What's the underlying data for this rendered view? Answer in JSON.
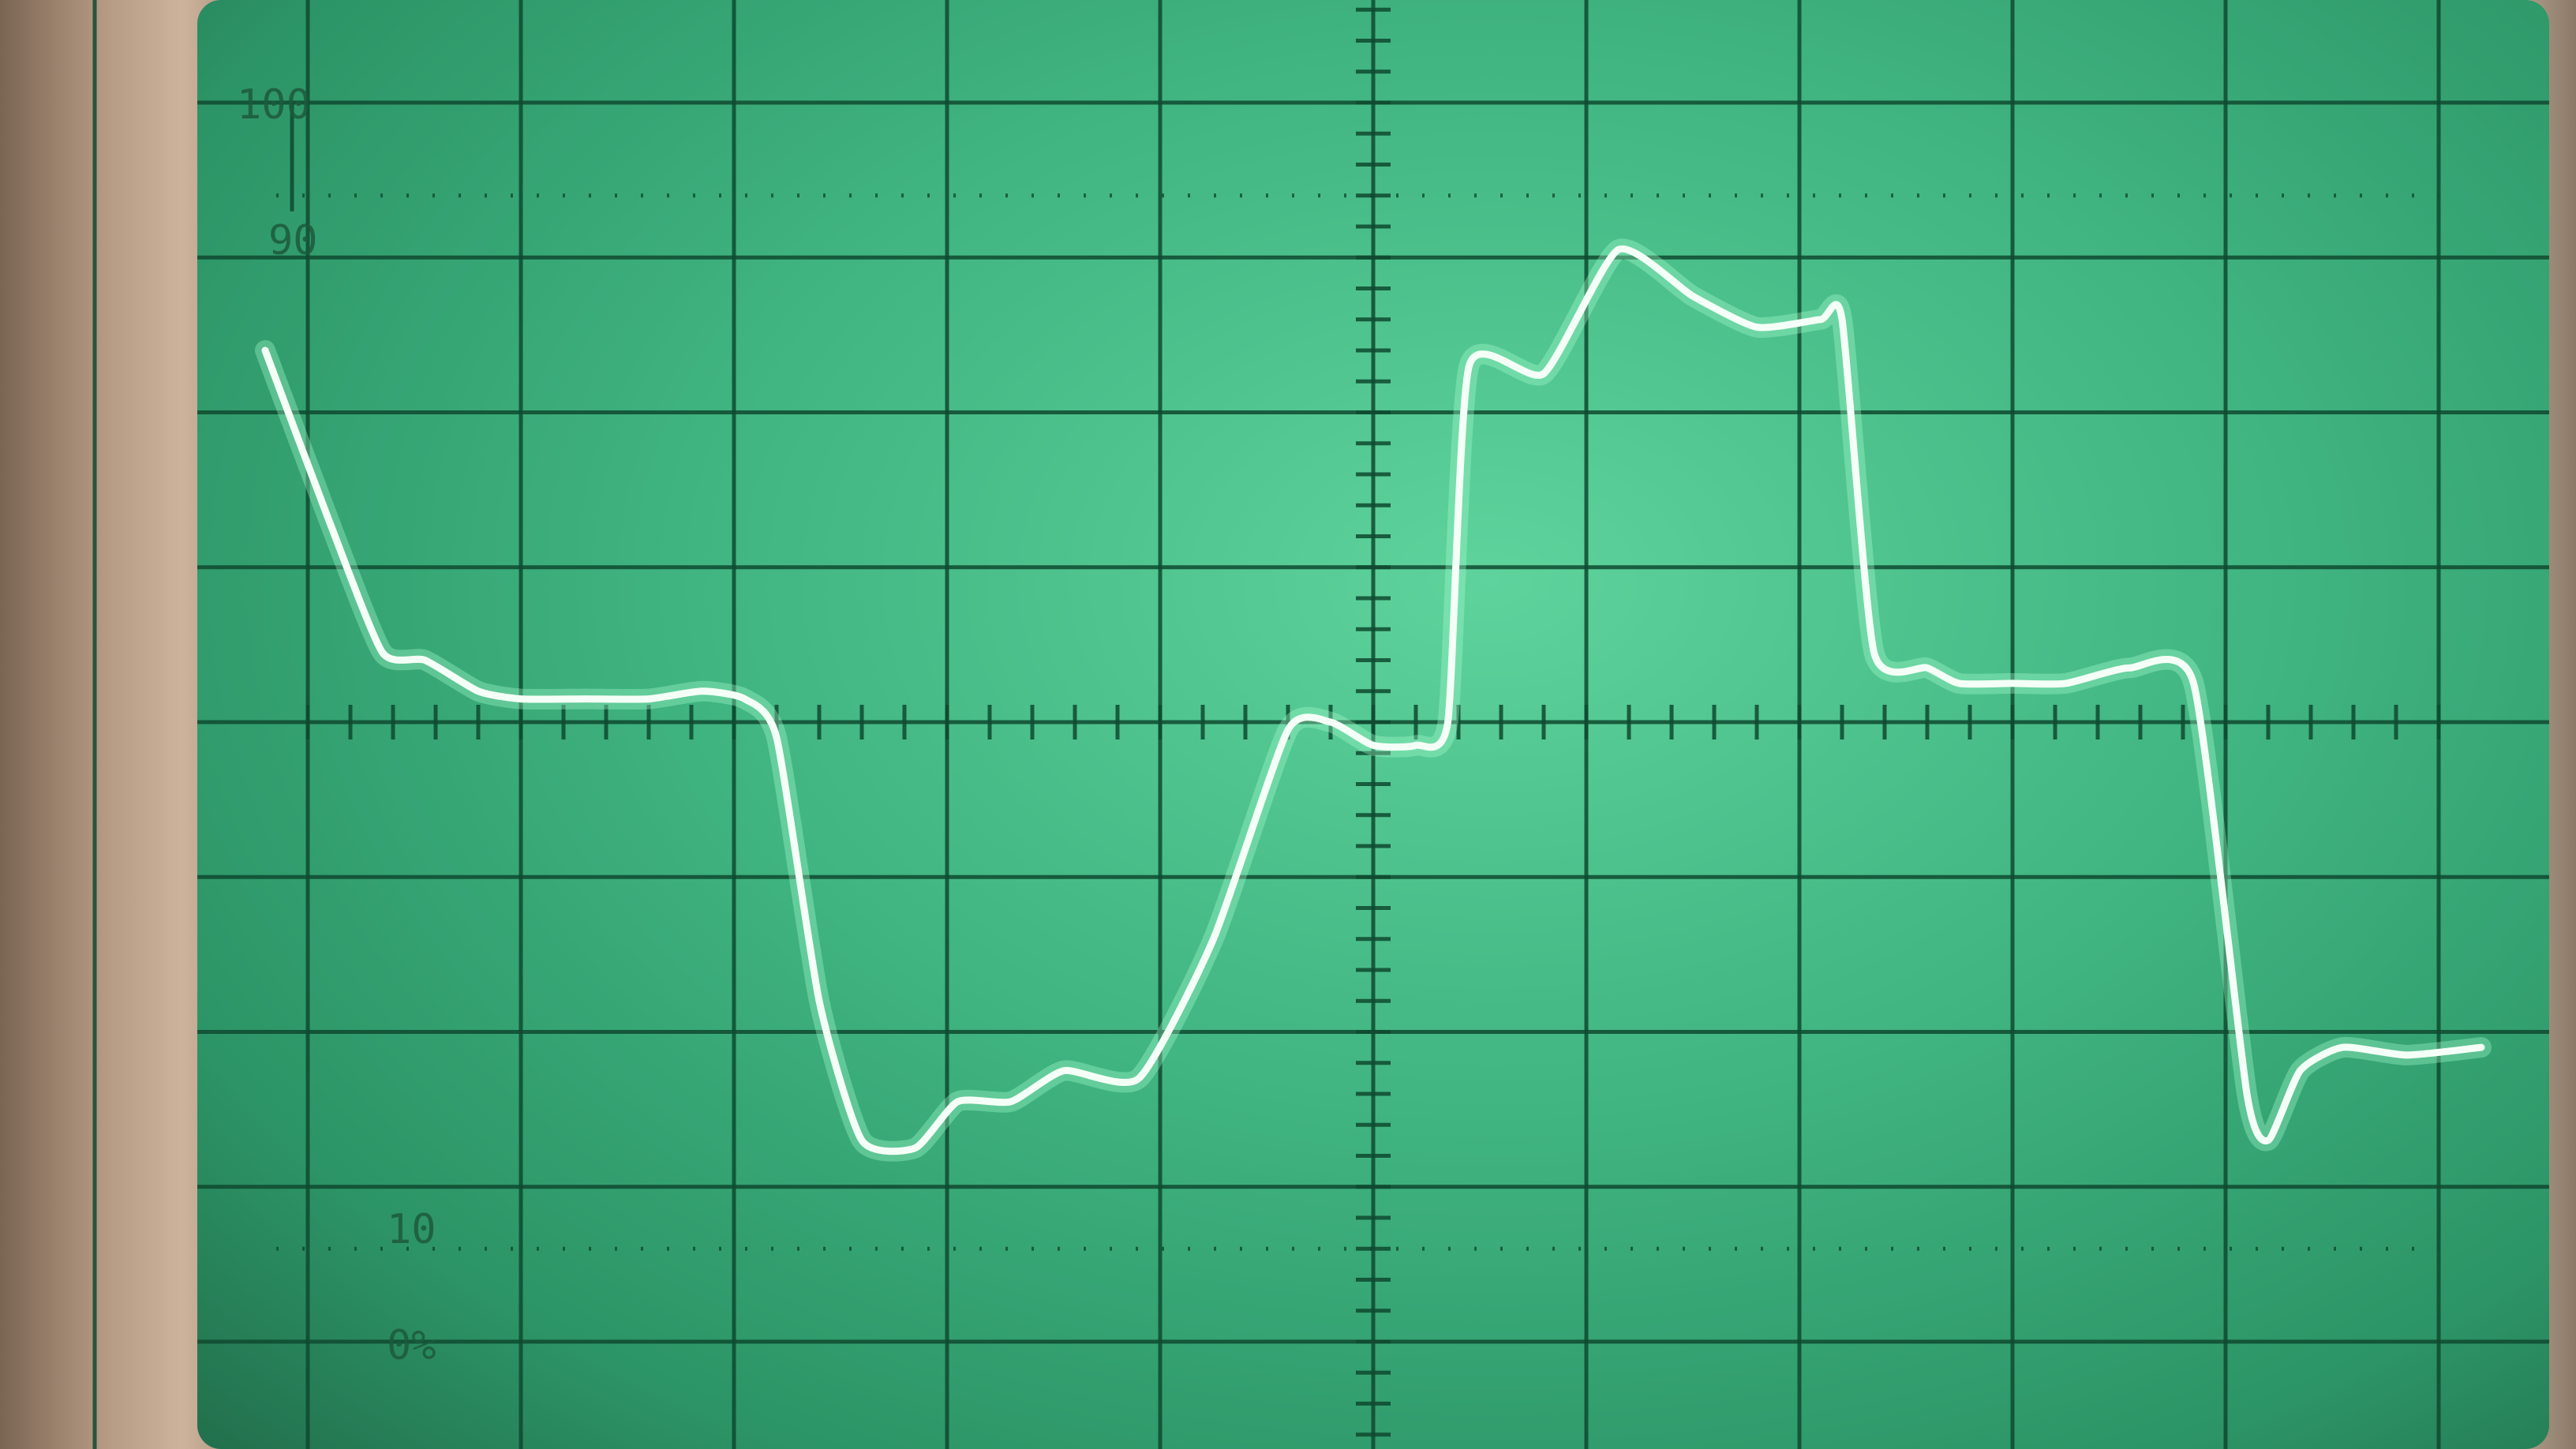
{
  "chart_data": {
    "type": "line",
    "title": "",
    "xlabel": "",
    "ylabel": "",
    "xlim": [
      0,
      10
    ],
    "ylim": [
      -4,
      4
    ],
    "grid": true,
    "graticule": {
      "major_x": 10,
      "major_y": 8
    },
    "scale_labels": [
      "100",
      "90",
      "10",
      "0%"
    ],
    "trace_color": "#f4fff7",
    "screen_color": "#3fb380",
    "series": [
      {
        "x": [
          -0.2,
          0.1,
          0.35,
          0.55,
          0.8,
          1.0,
          1.3,
          1.6,
          1.85,
          2.05,
          2.2,
          2.4,
          2.6,
          2.85,
          3.05,
          3.3,
          3.55,
          3.9,
          4.25,
          4.6,
          4.8,
          5.0,
          5.2,
          5.35,
          5.45,
          5.8,
          6.15,
          6.5,
          6.8,
          7.1,
          7.2,
          7.35,
          7.6,
          7.75,
          8.0,
          8.25,
          8.55,
          8.85,
          9.1,
          9.2,
          9.35,
          9.55,
          9.85,
          10.2
        ],
        "y": [
          2.4,
          1.3,
          0.45,
          0.4,
          0.2,
          0.15,
          0.15,
          0.15,
          0.2,
          0.15,
          -0.1,
          -1.8,
          -2.7,
          -2.75,
          -2.45,
          -2.45,
          -2.25,
          -2.3,
          -1.4,
          -0.05,
          0.0,
          -0.15,
          -0.15,
          0.0,
          2.3,
          2.25,
          3.05,
          2.75,
          2.55,
          2.6,
          2.6,
          0.45,
          0.35,
          0.25,
          0.25,
          0.25,
          0.35,
          0.25,
          -2.4,
          -2.7,
          -2.25,
          -2.1,
          -2.15,
          -2.1
        ]
      }
    ]
  }
}
